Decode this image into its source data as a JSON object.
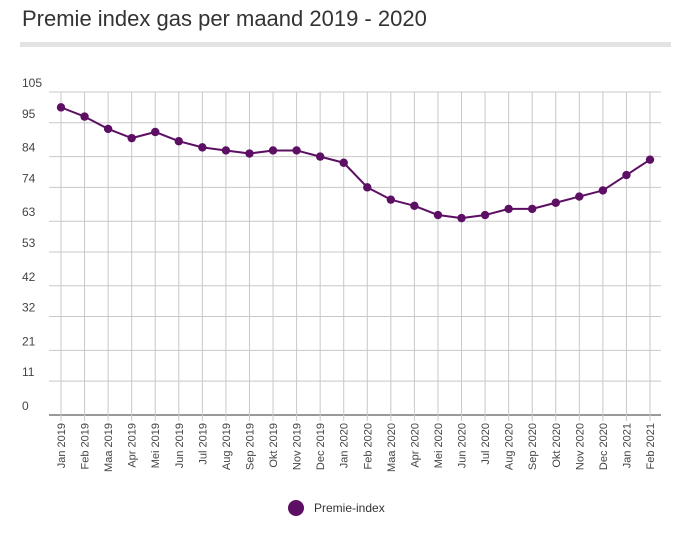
{
  "chart_data": {
    "type": "line",
    "title": "Premie index gas per maand 2019 - 2020",
    "categories": [
      "Jan 2019",
      "Feb 2019",
      "Maa 2019",
      "Apr 2019",
      "Mei 2019",
      "Jun 2019",
      "Jul 2019",
      "Aug 2019",
      "Sep 2019",
      "Okt 2019",
      "Nov 2019",
      "Dec 2019",
      "Jan 2020",
      "Feb 2020",
      "Maa 2020",
      "Apr 2020",
      "Mei 2020",
      "Jun 2020",
      "Jul 2020",
      "Aug 2020",
      "Sep 2020",
      "Okt 2020",
      "Nov 2020",
      "Dec 2020",
      "Jan 2021",
      "Feb 2021"
    ],
    "series": [
      {
        "name": "Premie-index",
        "color": "#5c0f63",
        "values": [
          100,
          97,
          93,
          90,
          92,
          89,
          87,
          86,
          85,
          86,
          86,
          84,
          82,
          74,
          70,
          68,
          65,
          64,
          65,
          67,
          67,
          69,
          71,
          73,
          78,
          83
        ]
      }
    ],
    "yticks": [
      0,
      11,
      21,
      32,
      42,
      53,
      63,
      74,
      84,
      95,
      105
    ],
    "ylim": [
      0,
      105
    ],
    "xlabel": "",
    "ylabel": "",
    "grid": true,
    "legend_position": "bottom"
  }
}
